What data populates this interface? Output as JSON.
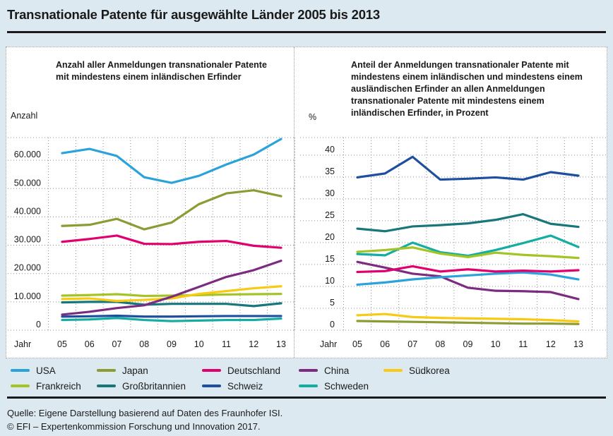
{
  "title": "Transnationale Patente für ausgewählte Länder 2005 bis 2013",
  "colors": {
    "USA": "#2aa3db",
    "Japan": "#8b9c35",
    "Deutschland": "#e2006e",
    "China": "#7d2b80",
    "Südkorea": "#f8ca12",
    "Frankreich": "#a4c425",
    "Großbritannien": "#17777b",
    "Schweiz": "#1e4f9e",
    "Schweden": "#13ada2"
  },
  "legend": {
    "items": [
      {
        "label": "USA",
        "color": "#2aa3db"
      },
      {
        "label": "Japan",
        "color": "#8b9c35"
      },
      {
        "label": "Deutschland",
        "color": "#e2006e"
      },
      {
        "label": "China",
        "color": "#7d2b80"
      },
      {
        "label": "Südkorea",
        "color": "#f8ca12"
      },
      {
        "label": "Frankreich",
        "color": "#a4c425"
      },
      {
        "label": "Großbritannien",
        "color": "#17777b"
      },
      {
        "label": "Schweiz",
        "color": "#1e4f9e"
      },
      {
        "label": "Schweden",
        "color": "#13ada2"
      }
    ]
  },
  "chart_data": [
    {
      "type": "line",
      "title": "Anzahl aller Anmeldungen transnationaler Patente mit mindestens einem inländischen Erfinder",
      "ylabel": "Anzahl",
      "xlabel": "Jahr",
      "categories": [
        "05",
        "06",
        "07",
        "08",
        "09",
        "10",
        "11",
        "12",
        "13"
      ],
      "ylim": [
        0,
        68000
      ],
      "grid": "dotted",
      "yticks": [
        {
          "v": 0,
          "label": "0"
        },
        {
          "v": 10000,
          "label": "10.000"
        },
        {
          "v": 20000,
          "label": "20.000"
        },
        {
          "v": 30000,
          "label": "30.000"
        },
        {
          "v": 40000,
          "label": "40.000"
        },
        {
          "v": 50000,
          "label": "50.000"
        },
        {
          "v": 60000,
          "label": "60.000"
        }
      ],
      "series": [
        {
          "name": "USA",
          "values": [
            62500,
            64000,
            61500,
            54000,
            52000,
            54500,
            58500,
            62000,
            67500
          ]
        },
        {
          "name": "Japan",
          "values": [
            36800,
            37200,
            39300,
            35600,
            38000,
            44500,
            48300,
            49400,
            47300
          ]
        },
        {
          "name": "Deutschland",
          "values": [
            31200,
            32200,
            33400,
            30500,
            30400,
            31200,
            31500,
            29800,
            29100
          ]
        },
        {
          "name": "China",
          "values": [
            5500,
            6500,
            7800,
            8800,
            11800,
            15300,
            18800,
            21200,
            24500
          ]
        },
        {
          "name": "Südkorea",
          "values": [
            11000,
            11200,
            10300,
            10700,
            11200,
            12800,
            13800,
            14800,
            15500
          ]
        },
        {
          "name": "Frankreich",
          "values": [
            12200,
            12400,
            12700,
            12100,
            12200,
            12400,
            12600,
            12700,
            12800
          ]
        },
        {
          "name": "Großbritannien",
          "values": [
            9800,
            10000,
            10000,
            9000,
            9300,
            9300,
            9300,
            8500,
            9500
          ]
        },
        {
          "name": "Schweiz",
          "values": [
            4800,
            4900,
            5100,
            4800,
            4800,
            4900,
            5000,
            5000,
            5000
          ]
        },
        {
          "name": "Schweden",
          "values": [
            3600,
            3800,
            4300,
            3600,
            3200,
            3400,
            3600,
            3600,
            4100
          ]
        }
      ]
    },
    {
      "type": "line",
      "title": "Anteil der Anmeldungen transnationaler Patente mit mindestens einem inländischen und mindestens einem ausländischen Erfinder an allen Anmeldungen transnationaler Patente mit mindestens einem inländischen Erfinder, in Prozent",
      "ylabel": "%",
      "xlabel": "Jahr",
      "categories": [
        "05",
        "06",
        "07",
        "08",
        "09",
        "10",
        "11",
        "12",
        "13"
      ],
      "ylim": [
        0,
        44
      ],
      "grid": "dotted",
      "yticks": [
        {
          "v": 0,
          "label": "0"
        },
        {
          "v": 5,
          "label": "5"
        },
        {
          "v": 10,
          "label": "10"
        },
        {
          "v": 15,
          "label": "15"
        },
        {
          "v": 20,
          "label": "20"
        },
        {
          "v": 25,
          "label": "25"
        },
        {
          "v": 30,
          "label": "30"
        },
        {
          "v": 35,
          "label": "35"
        },
        {
          "v": 40,
          "label": "40"
        }
      ],
      "series": [
        {
          "name": "USA",
          "values": [
            10.4,
            10.9,
            11.6,
            12.1,
            12.5,
            12.9,
            13.2,
            12.7,
            11.6
          ]
        },
        {
          "name": "Japan",
          "values": [
            2.1,
            2.0,
            1.9,
            1.8,
            1.7,
            1.6,
            1.5,
            1.5,
            1.4
          ]
        },
        {
          "name": "Deutschland",
          "values": [
            13.3,
            13.5,
            14.6,
            13.4,
            13.9,
            13.4,
            13.6,
            13.4,
            13.7
          ]
        },
        {
          "name": "China",
          "values": [
            15.6,
            14.3,
            12.9,
            12.3,
            9.7,
            9.0,
            8.9,
            8.7,
            7.1
          ]
        },
        {
          "name": "Südkorea",
          "values": [
            3.4,
            3.7,
            3.0,
            2.8,
            2.7,
            2.6,
            2.5,
            2.3,
            2.0
          ]
        },
        {
          "name": "Frankreich",
          "values": [
            17.9,
            18.3,
            18.9,
            17.5,
            16.7,
            17.7,
            17.2,
            16.9,
            16.5
          ]
        },
        {
          "name": "Großbritannien",
          "values": [
            23.2,
            22.6,
            23.7,
            24.0,
            24.4,
            25.2,
            26.5,
            24.3,
            23.6
          ]
        },
        {
          "name": "Schweiz",
          "values": [
            34.9,
            35.8,
            39.6,
            34.4,
            34.6,
            34.9,
            34.4,
            36.1,
            35.3
          ]
        },
        {
          "name": "Schweden",
          "values": [
            17.4,
            17.1,
            20.0,
            17.8,
            17.0,
            18.3,
            19.9,
            21.6,
            19.0
          ]
        }
      ]
    }
  ],
  "footer": {
    "source": "Quelle: Eigene Darstellung basierend auf Daten des Fraunhofer ISI.",
    "copyright": "© EFI – Expertenkommission Forschung und Innovation 2017."
  }
}
